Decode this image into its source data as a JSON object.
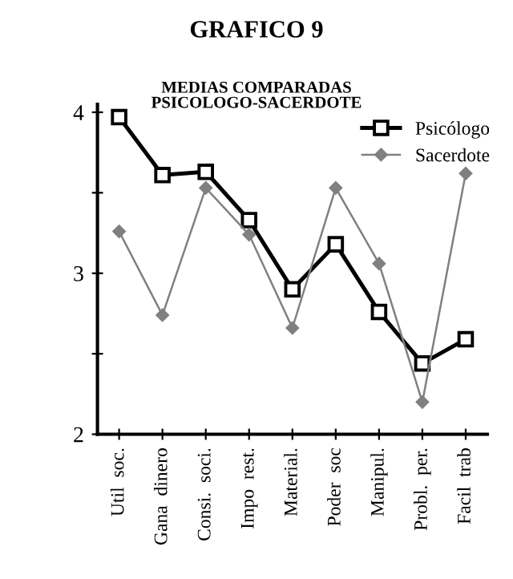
{
  "chart_data": {
    "type": "line",
    "title": "GRAFICO 9",
    "subtitle": "MEDIAS COMPARADAS\nPSICOLOGO-SACERDOTE",
    "categories": [
      "Util  soc.",
      "Gana  dinero",
      "Consi.  soci.",
      "Impo  rest.",
      "Material.",
      "Poder  soc",
      "Manipul.",
      "Probl.  per.",
      "Facil  trab"
    ],
    "series": [
      {
        "name": "Psicólogo",
        "color": "#000000",
        "marker": "square",
        "values": [
          3.97,
          3.61,
          3.63,
          3.33,
          2.9,
          3.18,
          2.76,
          2.44,
          2.59
        ]
      },
      {
        "name": "Sacerdote",
        "color": "#808080",
        "marker": "diamond",
        "values": [
          3.26,
          2.74,
          3.53,
          3.24,
          2.66,
          3.53,
          3.06,
          2.2,
          3.62
        ]
      }
    ],
    "ylim": [
      2,
      4.05
    ],
    "yticks": [
      2,
      {
        "value": 2.5,
        "label": null
      },
      3,
      {
        "value": 3.5,
        "label": null
      },
      4
    ],
    "grid": false,
    "legend": "top right"
  }
}
